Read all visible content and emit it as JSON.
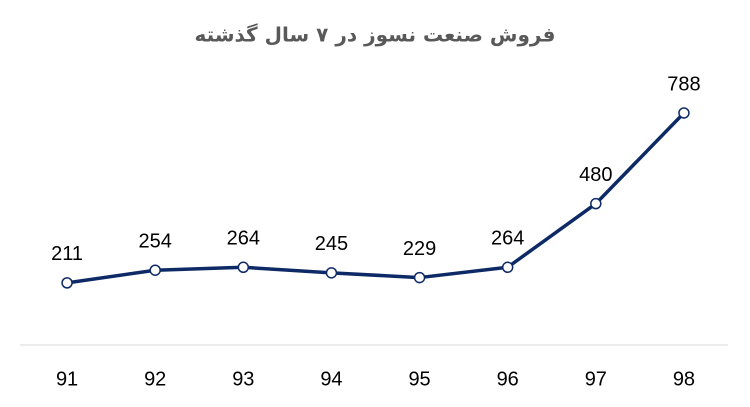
{
  "chart_data": {
    "type": "line",
    "title": "فروش صنعت نسوز در ۷ سال گذشته",
    "categories": [
      "91",
      "92",
      "93",
      "94",
      "95",
      "96",
      "97",
      "98"
    ],
    "series": [
      {
        "color": "#0e2a66",
        "values": [
          211,
          254,
          264,
          245,
          229,
          264,
          480,
          788
        ]
      }
    ],
    "ylim": [
      0,
      900
    ]
  }
}
